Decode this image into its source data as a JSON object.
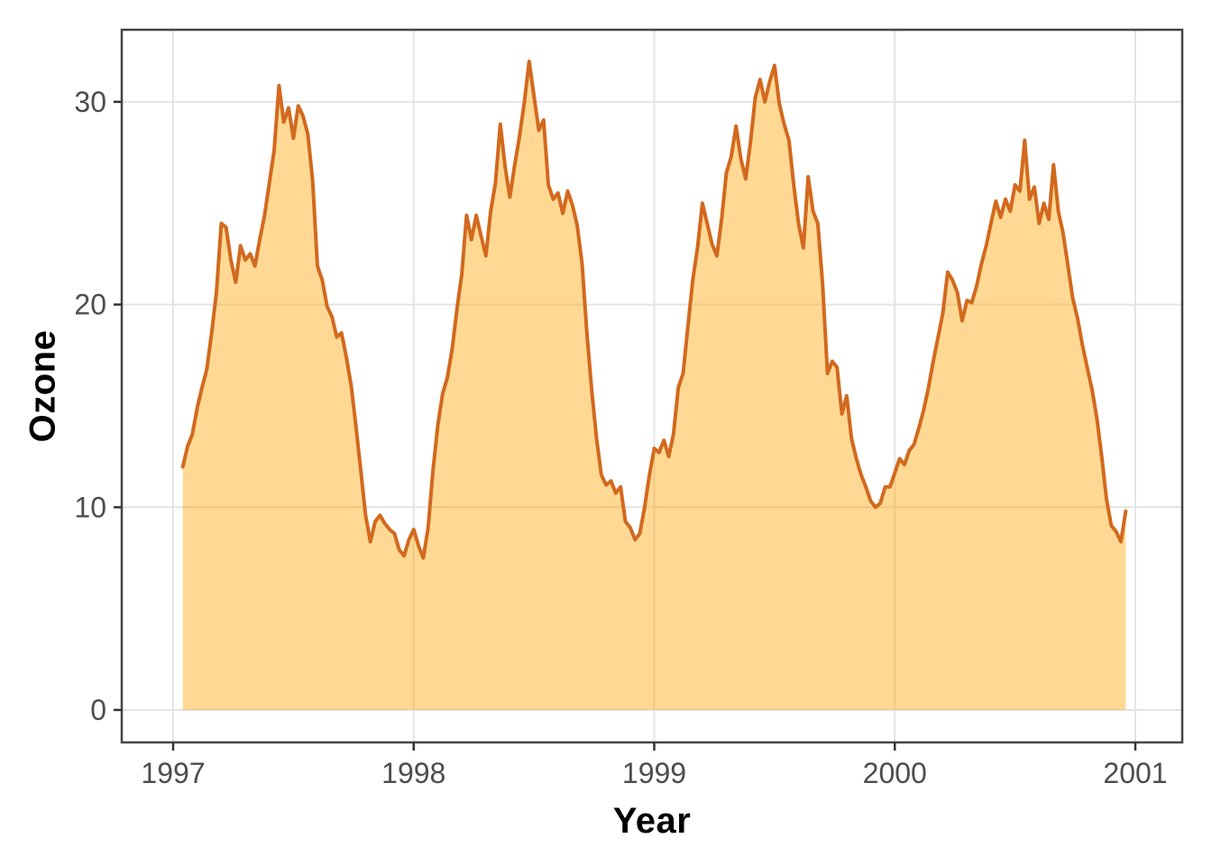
{
  "figure": {
    "background": "#FFFFFF"
  },
  "axes": {
    "x_title": "Year",
    "y_title": "Ozone"
  },
  "chart_data": {
    "type": "area",
    "title": "",
    "xlabel": "Year",
    "ylabel": "Ozone",
    "x_ticks": [
      1997,
      1998,
      1999,
      2000,
      2001
    ],
    "y_ticks": [
      0,
      10,
      20,
      30
    ],
    "xlim": [
      1996.84,
      2001.16
    ],
    "ylim": [
      -1.6,
      33.6
    ],
    "grid": {
      "major": true,
      "minor": false,
      "color": "#E4E4E4"
    },
    "legend_position": "none",
    "series": [
      {
        "name": "Ozone",
        "x_start": 1997.04,
        "x_step": 0.02,
        "x_end": 2000.96,
        "values": [
          12.0,
          13.0,
          13.6,
          14.9,
          15.9,
          16.8,
          18.6,
          20.6,
          24.0,
          23.8,
          22.2,
          21.1,
          22.9,
          22.2,
          22.5,
          21.9,
          23.2,
          24.4,
          26.0,
          27.6,
          30.8,
          29.0,
          29.7,
          28.2,
          29.8,
          29.3,
          28.4,
          26.1,
          21.9,
          21.2,
          19.9,
          19.4,
          18.4,
          18.6,
          17.4,
          16.0,
          14.0,
          11.8,
          9.6,
          8.3,
          9.3,
          9.6,
          9.2,
          8.9,
          8.7,
          7.9,
          7.6,
          8.4,
          8.9,
          8.1,
          7.5,
          9.0,
          11.8,
          14.0,
          15.6,
          16.4,
          17.8,
          19.8,
          21.5,
          24.4,
          23.2,
          24.4,
          23.4,
          22.4,
          24.6,
          26.0,
          28.9,
          26.8,
          25.3,
          26.9,
          28.3,
          30.0,
          32.0,
          30.3,
          28.6,
          29.1,
          25.9,
          25.2,
          25.5,
          24.5,
          25.6,
          24.9,
          23.9,
          22.0,
          18.6,
          15.8,
          13.4,
          11.6,
          11.1,
          11.3,
          10.7,
          11.0,
          9.3,
          9.0,
          8.4,
          8.7,
          10.0,
          11.6,
          12.9,
          12.7,
          13.3,
          12.5,
          13.6,
          15.9,
          16.6,
          18.9,
          21.2,
          22.8,
          25.0,
          24.0,
          23.0,
          22.4,
          24.2,
          26.5,
          27.3,
          28.8,
          27.2,
          26.2,
          28.0,
          30.2,
          31.1,
          30.0,
          31.0,
          31.8,
          29.9,
          28.9,
          28.1,
          25.9,
          24.0,
          22.8,
          26.3,
          24.6,
          24.0,
          21.0,
          16.6,
          17.2,
          16.9,
          14.6,
          15.5,
          13.4,
          12.4,
          11.6,
          11.0,
          10.3,
          10.0,
          10.2,
          11.0,
          11.0,
          11.7,
          12.4,
          12.1,
          12.8,
          13.1,
          13.9,
          14.8,
          15.9,
          17.2,
          18.4,
          19.6,
          21.6,
          21.2,
          20.6,
          19.2,
          20.2,
          20.1,
          20.9,
          22.0,
          22.9,
          24.0,
          25.1,
          24.3,
          25.2,
          24.6,
          25.9,
          25.6,
          28.1,
          25.2,
          25.8,
          24.0,
          25.0,
          24.2,
          26.9,
          24.6,
          23.5,
          21.9,
          20.3,
          19.3,
          18.0,
          16.9,
          15.8,
          14.4,
          12.5,
          10.4,
          9.1,
          8.8,
          8.3,
          9.8
        ]
      }
    ],
    "style": {
      "line_color": "#D2691E",
      "line_width": 4,
      "area_fill": "#FFA500",
      "area_opacity": 0.42,
      "panel_border_color": "#454545",
      "grid_color": "#E4E4E4",
      "tick_mark_color": "#333333",
      "tick_label_color": "#4D4D4D",
      "axis_title_color": "#000000"
    }
  }
}
